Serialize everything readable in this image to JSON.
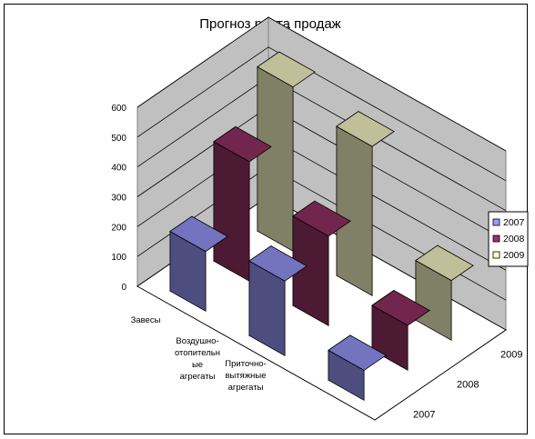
{
  "chart_data": {
    "type": "bar",
    "subtype": "3d-column",
    "title": "Прогноз роста продаж",
    "categories": [
      [
        "Завесы"
      ],
      [
        "Воздушно-",
        "отопительн",
        "ые",
        "агрегаты"
      ],
      [
        "Приточно-",
        "вытяжные",
        "агрегаты"
      ]
    ],
    "series": [
      {
        "name": "2007",
        "color": "#9999ff",
        "values": [
          200,
          250,
          100
        ]
      },
      {
        "name": "2008",
        "color": "#993366",
        "values": [
          400,
          300,
          150
        ]
      },
      {
        "name": "2009",
        "color": "#ffffcc",
        "values": [
          550,
          500,
          200
        ]
      }
    ],
    "y_ticks": [
      "0",
      "100",
      "200",
      "300",
      "400",
      "500",
      "600"
    ],
    "ylim": [
      0,
      600
    ],
    "depth_labels": [
      "2007",
      "2008",
      "2009"
    ],
    "grid": true,
    "legend_position": "right"
  }
}
